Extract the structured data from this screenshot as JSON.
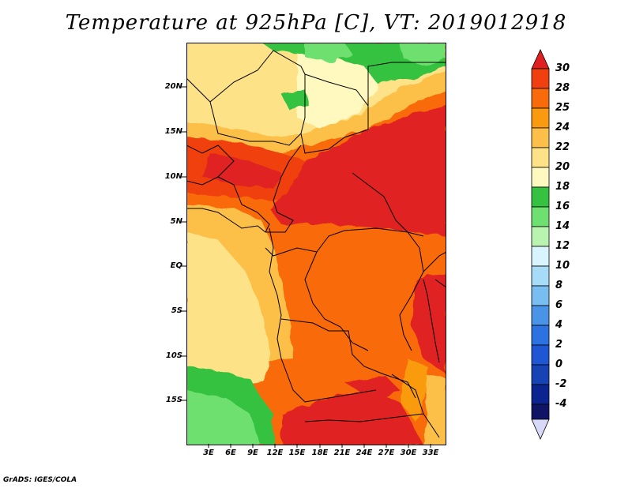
{
  "title": "Temperature at 925hPa [C], VT: 2019012918",
  "lat_labels": [
    "20N",
    "15N",
    "10N",
    "5N",
    "EQ",
    "5S",
    "10S",
    "15S"
  ],
  "lon_labels": [
    "3E",
    "6E",
    "9E",
    "12E",
    "15E",
    "18E",
    "21E",
    "24E",
    "27E",
    "30E",
    "33E"
  ],
  "colorbar": {
    "labels": [
      "30",
      "28",
      "25",
      "24",
      "22",
      "20",
      "18",
      "16",
      "14",
      "12",
      "10",
      "8",
      "6",
      "4",
      "2",
      "0",
      "-2",
      "-4"
    ],
    "colors": {
      "gt30": "#e02020",
      "c28_30": "#f04010",
      "c25_28": "#f86a0a",
      "c24_25": "#fa9a10",
      "c22_24": "#fcc04a",
      "c20_22": "#fde288",
      "c18_20": "#fff9c0",
      "c16_18": "#34c240",
      "c14_16": "#6ee070",
      "c12_14": "#b8f4b0",
      "c10_12": "#d8f4ff",
      "c8_10": "#a6dcf8",
      "c6_8": "#78bef0",
      "c4_6": "#4a94e8",
      "c2_4": "#2c72e0",
      "c0_2": "#1e56d4",
      "cm2_0": "#1644b4",
      "cm4_m2": "#0c2490",
      "lt_m4": "#101464"
    }
  },
  "credit": "GrADS: IGES/COLA"
}
